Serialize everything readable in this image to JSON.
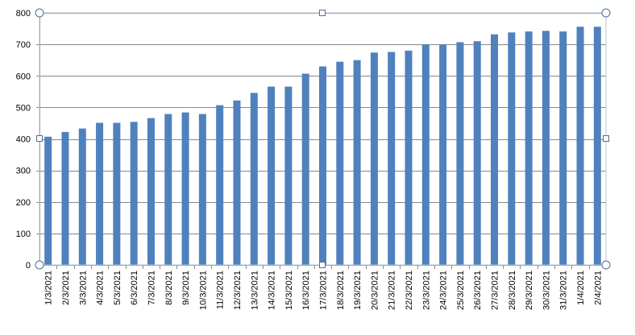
{
  "colors": {
    "bar": "#4f81bd",
    "grid": "#888888",
    "handle_stroke": "#4f6f8f"
  },
  "chart_data": {
    "type": "bar",
    "title": "",
    "xlabel": "",
    "ylabel": "",
    "ylim": [
      0,
      800
    ],
    "yticks": [
      "0",
      "100",
      "200",
      "300",
      "400",
      "500",
      "600",
      "700",
      "800"
    ],
    "grid": true,
    "legend": "none",
    "categories": [
      "1/3/2021",
      "2/3/2021",
      "3/3/2021",
      "4/3/2021",
      "5/3/2021",
      "6/3/2021",
      "7/3/2021",
      "8/3/2021",
      "9/3/2021",
      "10/3/2021",
      "11/3/2021",
      "12/3/2021",
      "13/3/2021",
      "14/3/2021",
      "15/3/2021",
      "16/3/2021",
      "17/3/2021",
      "18/3/2021",
      "19/3/2021",
      "20/3/2021",
      "21/3/2021",
      "22/3/2021",
      "23/3/2021",
      "24/3/2021",
      "25/3/2021",
      "26/3/2021",
      "27/3/2021",
      "28/3/2021",
      "29/3/2021",
      "30/3/2021",
      "31/3/2021",
      "1/4/2021",
      "2/4/2021"
    ],
    "values": [
      407,
      422,
      433,
      451,
      451,
      454,
      466,
      479,
      484,
      479,
      507,
      522,
      546,
      566,
      566,
      607,
      630,
      645,
      650,
      674,
      676,
      680,
      700,
      700,
      707,
      710,
      732,
      738,
      741,
      743,
      741,
      756,
      756
    ]
  }
}
